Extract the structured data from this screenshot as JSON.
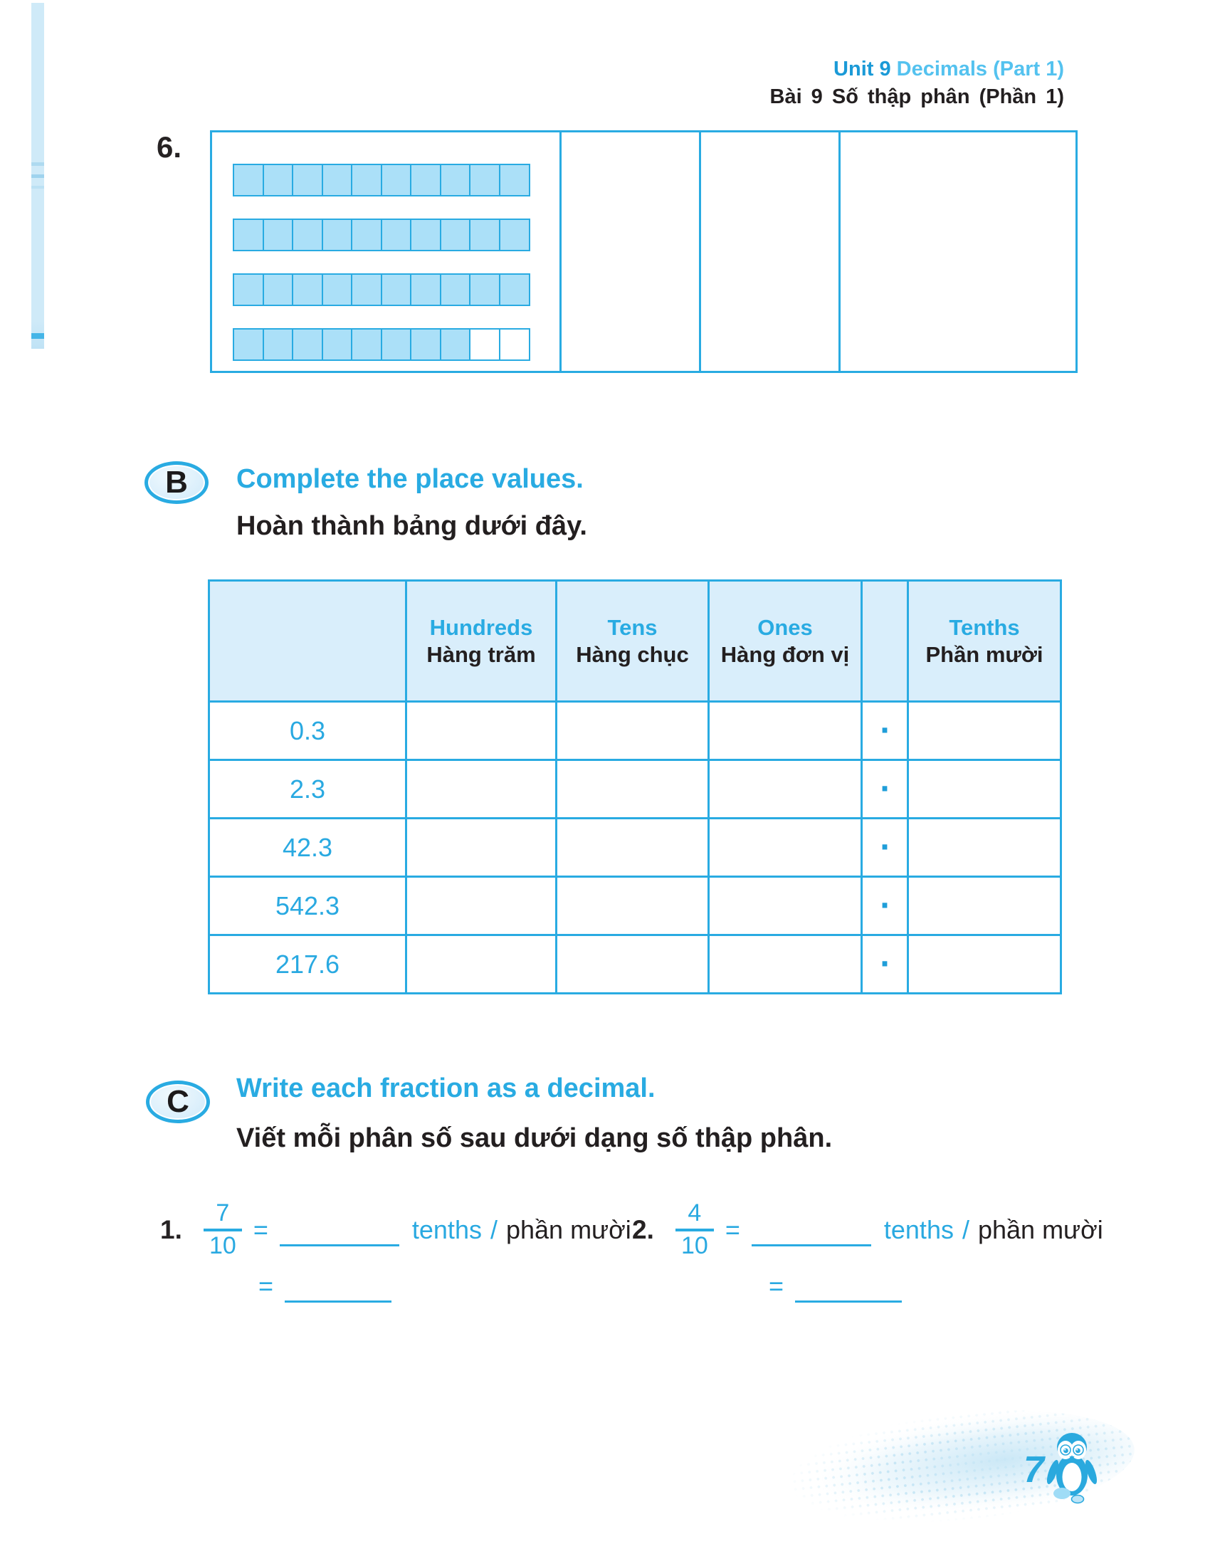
{
  "header": {
    "unit_label": "Unit 9",
    "unit_title_en": "Decimals (Part 1)",
    "unit_title_vi": "Bài 9 Số thập phân (Phần 1)"
  },
  "question6": {
    "number": "6.",
    "strip_cells": 10,
    "strips_filled": [
      10,
      10,
      10,
      8
    ]
  },
  "section_b": {
    "badge": "B",
    "title_en": "Complete the place values.",
    "title_vi": "Hoàn thành bảng dưới đây.",
    "table": {
      "headers": [
        {
          "en": "Hundreds",
          "vi": "Hàng trăm"
        },
        {
          "en": "Tens",
          "vi": "Hàng chục"
        },
        {
          "en": "Ones",
          "vi": "Hàng đơn vị"
        },
        {
          "en": "",
          "vi": ""
        },
        {
          "en": "Tenths",
          "vi": "Phần mười"
        }
      ],
      "decimal_point": ".",
      "rows": [
        "0.3",
        "2.3",
        "42.3",
        "542.3",
        "217.6"
      ]
    }
  },
  "section_c": {
    "badge": "C",
    "title_en": "Write each fraction as a decimal.",
    "title_vi": "Viết mỗi phân số sau dưới dạng số thập phân.",
    "items": [
      {
        "number": "1.",
        "numerator": "7",
        "denominator": "10",
        "equals": "=",
        "unit_en": "tenths",
        "slash": "/",
        "unit_vi": "phần mười",
        "equals2": "="
      },
      {
        "number": "2.",
        "numerator": "4",
        "denominator": "10",
        "equals": "=",
        "unit_en": "tenths",
        "slash": "/",
        "unit_vi": "phần mười",
        "equals2": "="
      }
    ]
  },
  "footer": {
    "page_number": "7",
    "mascot_icon": "penguin-mascot"
  },
  "colors": {
    "accent": "#29ABE2",
    "accent_dark": "#1B9AD7",
    "accent_light": "#54C2EF",
    "text_dark": "#231F20",
    "table_header_fill": "#D9EEFB",
    "strip_fill": "#ABE0F8",
    "margin_bar_fill": "#CFEAF8"
  }
}
